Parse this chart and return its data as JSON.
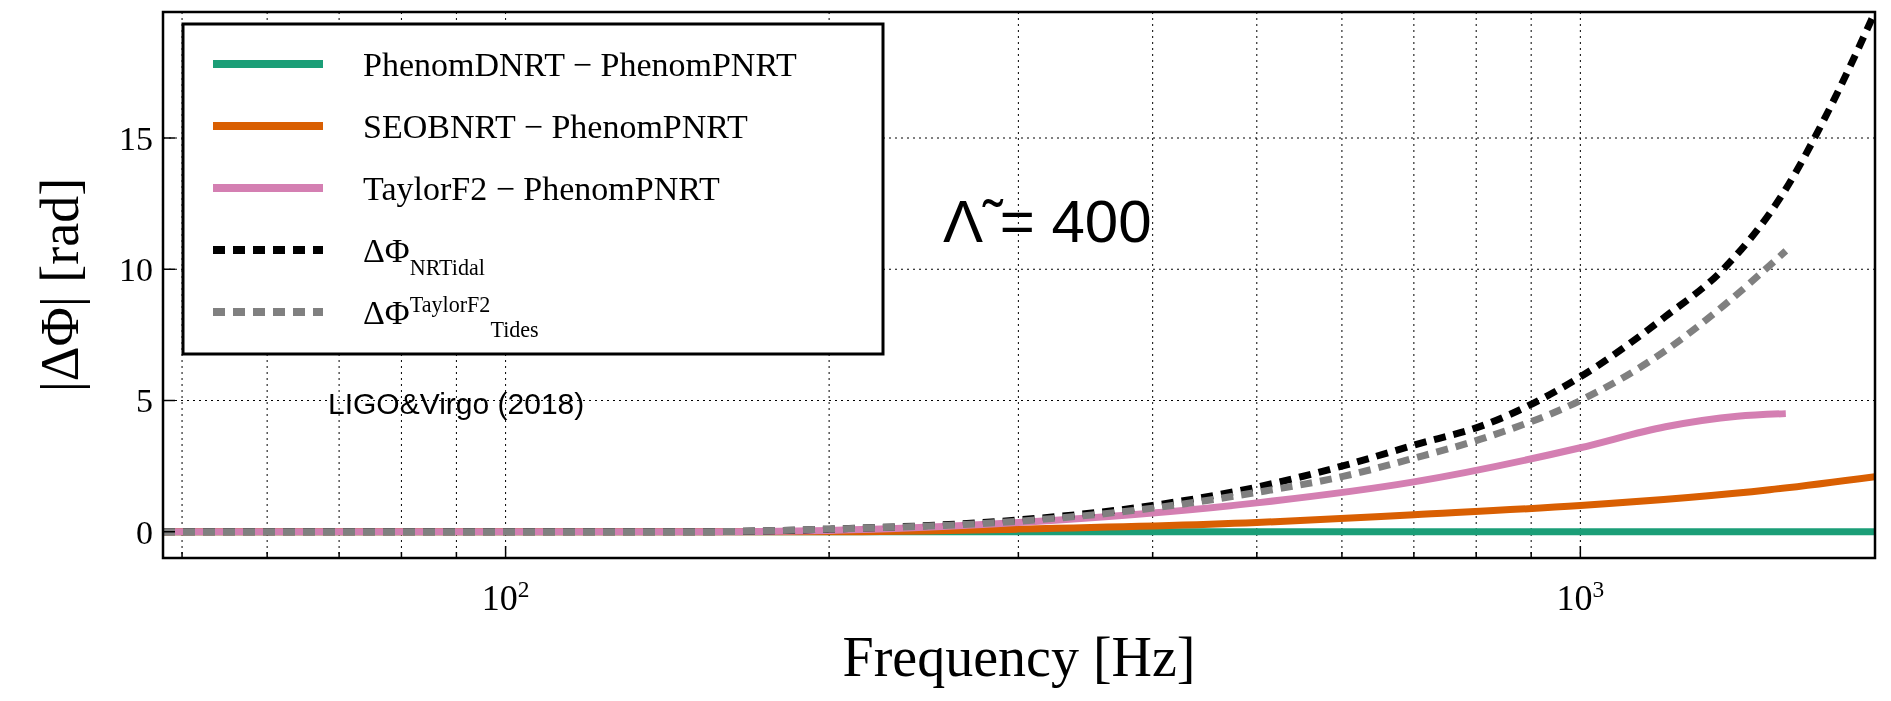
{
  "chart_data": {
    "type": "line",
    "xlabel": "Frequency [Hz]",
    "ylabel": "|ΔΦ| [rad]",
    "log": "x",
    "grid": true,
    "legend": "top left",
    "line_style": "solid",
    "xlim": [
      48,
      1880
    ],
    "ylim": [
      -1,
      19.8
    ],
    "xticks": [
      {
        "value": 50,
        "label": null
      },
      {
        "value": 60,
        "label": null
      },
      {
        "value": 70,
        "label": null
      },
      {
        "value": 80,
        "label": null
      },
      {
        "value": 90,
        "label": null
      },
      {
        "value": 100,
        "label": "10$^{2}$"
      },
      {
        "value": 200,
        "label": null
      },
      {
        "value": 300,
        "label": null
      },
      {
        "value": 400,
        "label": null
      },
      {
        "value": 500,
        "label": null
      },
      {
        "value": 600,
        "label": null
      },
      {
        "value": 700,
        "label": null
      },
      {
        "value": 800,
        "label": null
      },
      {
        "value": 900,
        "label": null
      },
      {
        "value": 1000,
        "label": "10$^{3}$"
      }
    ],
    "yticks": [
      0,
      5,
      10,
      15
    ],
    "annotations": [
      "Λ̃ = 400",
      "LIGO&Virgo (2018)"
    ],
    "series": [
      {
        "name": "PhenomDNRT − PhenomPNRT",
        "color": "#1b9e77",
        "x": [
          48,
          200,
          500,
          1000,
          1880
        ],
        "values": [
          0,
          0,
          0,
          0,
          0
        ]
      },
      {
        "name": "SEOBNRT − PhenomPNRT",
        "color": "#d95f02",
        "x": [
          48,
          200,
          300,
          500,
          700,
          1000,
          1500,
          1880
        ],
        "values": [
          0,
          0,
          0.1,
          0.35,
          0.65,
          1.0,
          1.6,
          2.1
        ]
      },
      {
        "name": "TaylorF2 − PhenomPNRT",
        "color": "#d47fb2",
        "x": [
          48,
          150,
          200,
          300,
          500,
          700,
          1000,
          1200,
          1400,
          1553
        ],
        "values": [
          0,
          0,
          0.05,
          0.35,
          1.1,
          1.9,
          3.2,
          4.0,
          4.4,
          4.5
        ]
      },
      {
        "name": "ΔΦ$_{NRTidal}$",
        "color": "#000000",
        "line_style": "dashed",
        "x": [
          48,
          150,
          200,
          300,
          400,
          500,
          600,
          700,
          818,
          1000,
          1200,
          1358,
          1550,
          1700,
          1880
        ],
        "values": [
          0,
          0,
          0.1,
          0.45,
          1.0,
          1.7,
          2.5,
          3.3,
          4.1,
          5.9,
          8.2,
          10,
          13,
          16,
          19.8
        ]
      },
      {
        "name": "ΔΦ$^{TaylorF2}$$_{Tides}$",
        "color": "#808080",
        "line_style": "dashed",
        "x": [
          48,
          150,
          200,
          300,
          400,
          500,
          600,
          700,
          818,
          1000,
          1200,
          1358,
          1553
        ],
        "values": [
          0,
          0,
          0.1,
          0.4,
          0.9,
          1.5,
          2.1,
          2.8,
          3.6,
          5.0,
          6.9,
          8.6,
          10.7
        ]
      }
    ]
  }
}
